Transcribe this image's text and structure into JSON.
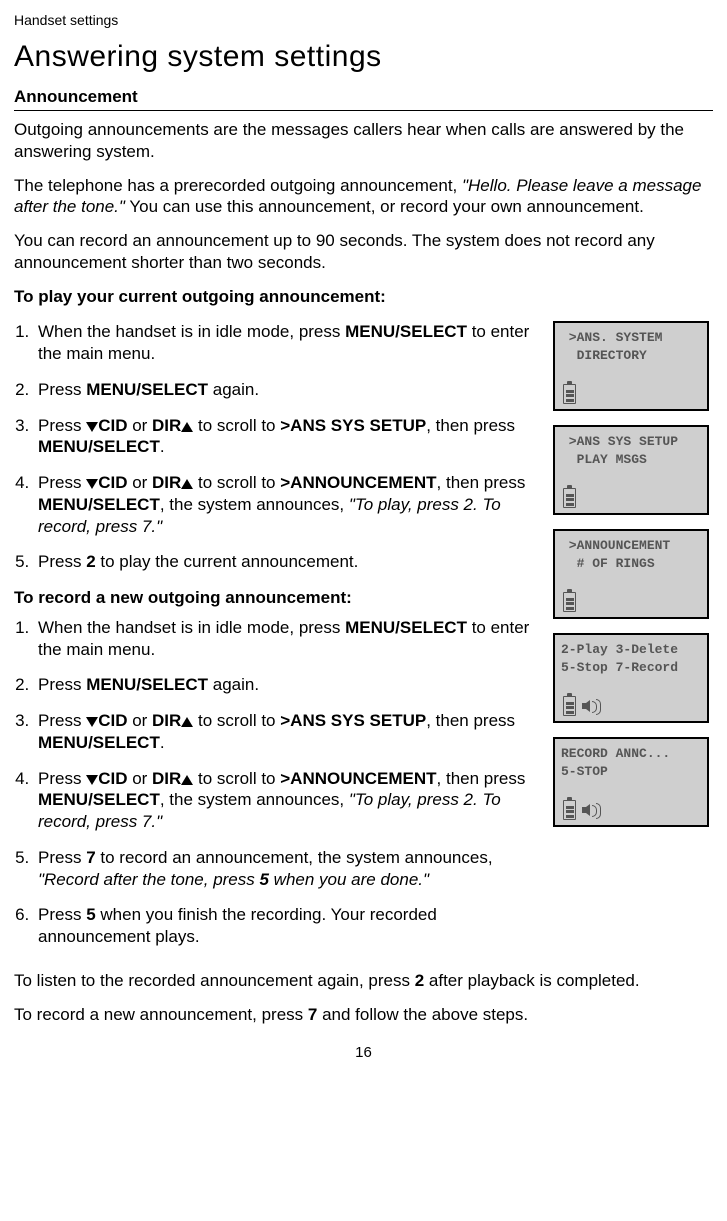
{
  "header": {
    "section": "Handset settings",
    "page_number": "16"
  },
  "title": "Answering system settings",
  "subheading": "Announcement",
  "intro": {
    "p1": "Outgoing announcements are the messages callers hear when calls are answered by the answering system.",
    "p2_pre": "The telephone has a prerecorded outgoing announcement, ",
    "p2_quote": "\"Hello. Please leave a message after the tone.\"",
    "p2_post": " You can use this announcement, or record your own announcement.",
    "p3": "You can record an announcement up to 90 seconds. The system does not record any announcement shorter than two seconds."
  },
  "play_label": "To play your current outgoing announcement:",
  "steps_play": {
    "s1_pre": "When the handset is in idle mode, press ",
    "s1_key": "MENU/",
    "s1_key_sc": "SELECT",
    "s1_post": " to enter the main menu.",
    "s2_pre": "Press ",
    "s2_key_sc": "MENU",
    "s2_key": "/SELECT",
    "s2_post": " again.",
    "s3_pre": "Press ",
    "s3_cid": "CID",
    "s3_or": " or ",
    "s3_dir": "DIR",
    "s3_mid": " to scroll to ",
    "s3_target": ">ANS SYS SETUP",
    "s3_then": ", then press ",
    "s3_key_sc": "MENU",
    "s3_key": "/SELECT",
    "s3_end": ".",
    "s4_pre": "Press ",
    "s4_cid": "CID",
    "s4_or": " or ",
    "s4_dir": "DIR",
    "s4_mid": " to scroll to ",
    "s4_target": ">ANNOUNCEMENT",
    "s4_then": ", then press ",
    "s4_key_sc": "MENU",
    "s4_key": "/SELECT",
    "s4_ann": ", the system announces, ",
    "s4_quote": "\"To play, press 2. To record, press 7.\"",
    "s5_pre": "Press ",
    "s5_key": "2",
    "s5_post": " to play the current announcement."
  },
  "record_label": "To record a new outgoing announcement:",
  "steps_rec": {
    "s1_pre": "When the handset is in idle mode, press ",
    "s1_key": "MENU/",
    "s1_key_sc": "SELECT",
    "s1_post": " to enter the main menu.",
    "s2_pre": "Press ",
    "s2_key_sc": "MENU",
    "s2_key": "/SELECT",
    "s2_post": " again.",
    "s3_pre": "Press ",
    "s3_cid": "CID",
    "s3_or": " or ",
    "s3_dir": "DIR",
    "s3_mid": " to scroll to ",
    "s3_target": ">ANS SYS SETUP",
    "s3_then": ", then press ",
    "s3_key_sc": "MENU",
    "s3_key": "/SELECT",
    "s3_end": ".",
    "s4_pre": "Press ",
    "s4_cid": "CID",
    "s4_or": " or ",
    "s4_dir": "DIR",
    "s4_mid": " to scroll to ",
    "s4_target": ">ANNOUNCEMENT",
    "s4_then": ", then press ",
    "s4_key_sc": "MENU",
    "s4_key": "/SELECT",
    "s4_ann": ", the system announces, ",
    "s4_quote": "\"To play, press 2. To record, press 7.\"",
    "s5_pre": "Press ",
    "s5_key": "7",
    "s5_mid": " to record an announcement, the system announces, ",
    "s5_quote_pre": "\"Record after the tone, press ",
    "s5_quote_bold": "5",
    "s5_quote_post": " when you are done.\"",
    "s6_pre": "Press ",
    "s6_key": "5",
    "s6_post": " when you finish the recording. Your recorded announcement plays."
  },
  "outro": {
    "p1_pre": "To listen to the recorded announcement again, press ",
    "p1_key": "2",
    "p1_post": " after playback is completed.",
    "p2_pre": "To record a new announcement, press ",
    "p2_key": "7",
    "p2_post": " and follow the above steps."
  },
  "lcds": {
    "s1": {
      "l1": " >ANS. SYSTEM",
      "l2": "  DIRECTORY"
    },
    "s2": {
      "l1": " >ANS SYS SETUP",
      "l2": "  PLAY MSGS"
    },
    "s3": {
      "l1": " >ANNOUNCEMENT",
      "l2": "  # OF RINGS"
    },
    "s4": {
      "l1": "2-Play 3-Delete",
      "l2": "5-Stop 7-Record"
    },
    "s5": {
      "l1": "RECORD ANNC...",
      "l2": "5-STOP"
    }
  }
}
